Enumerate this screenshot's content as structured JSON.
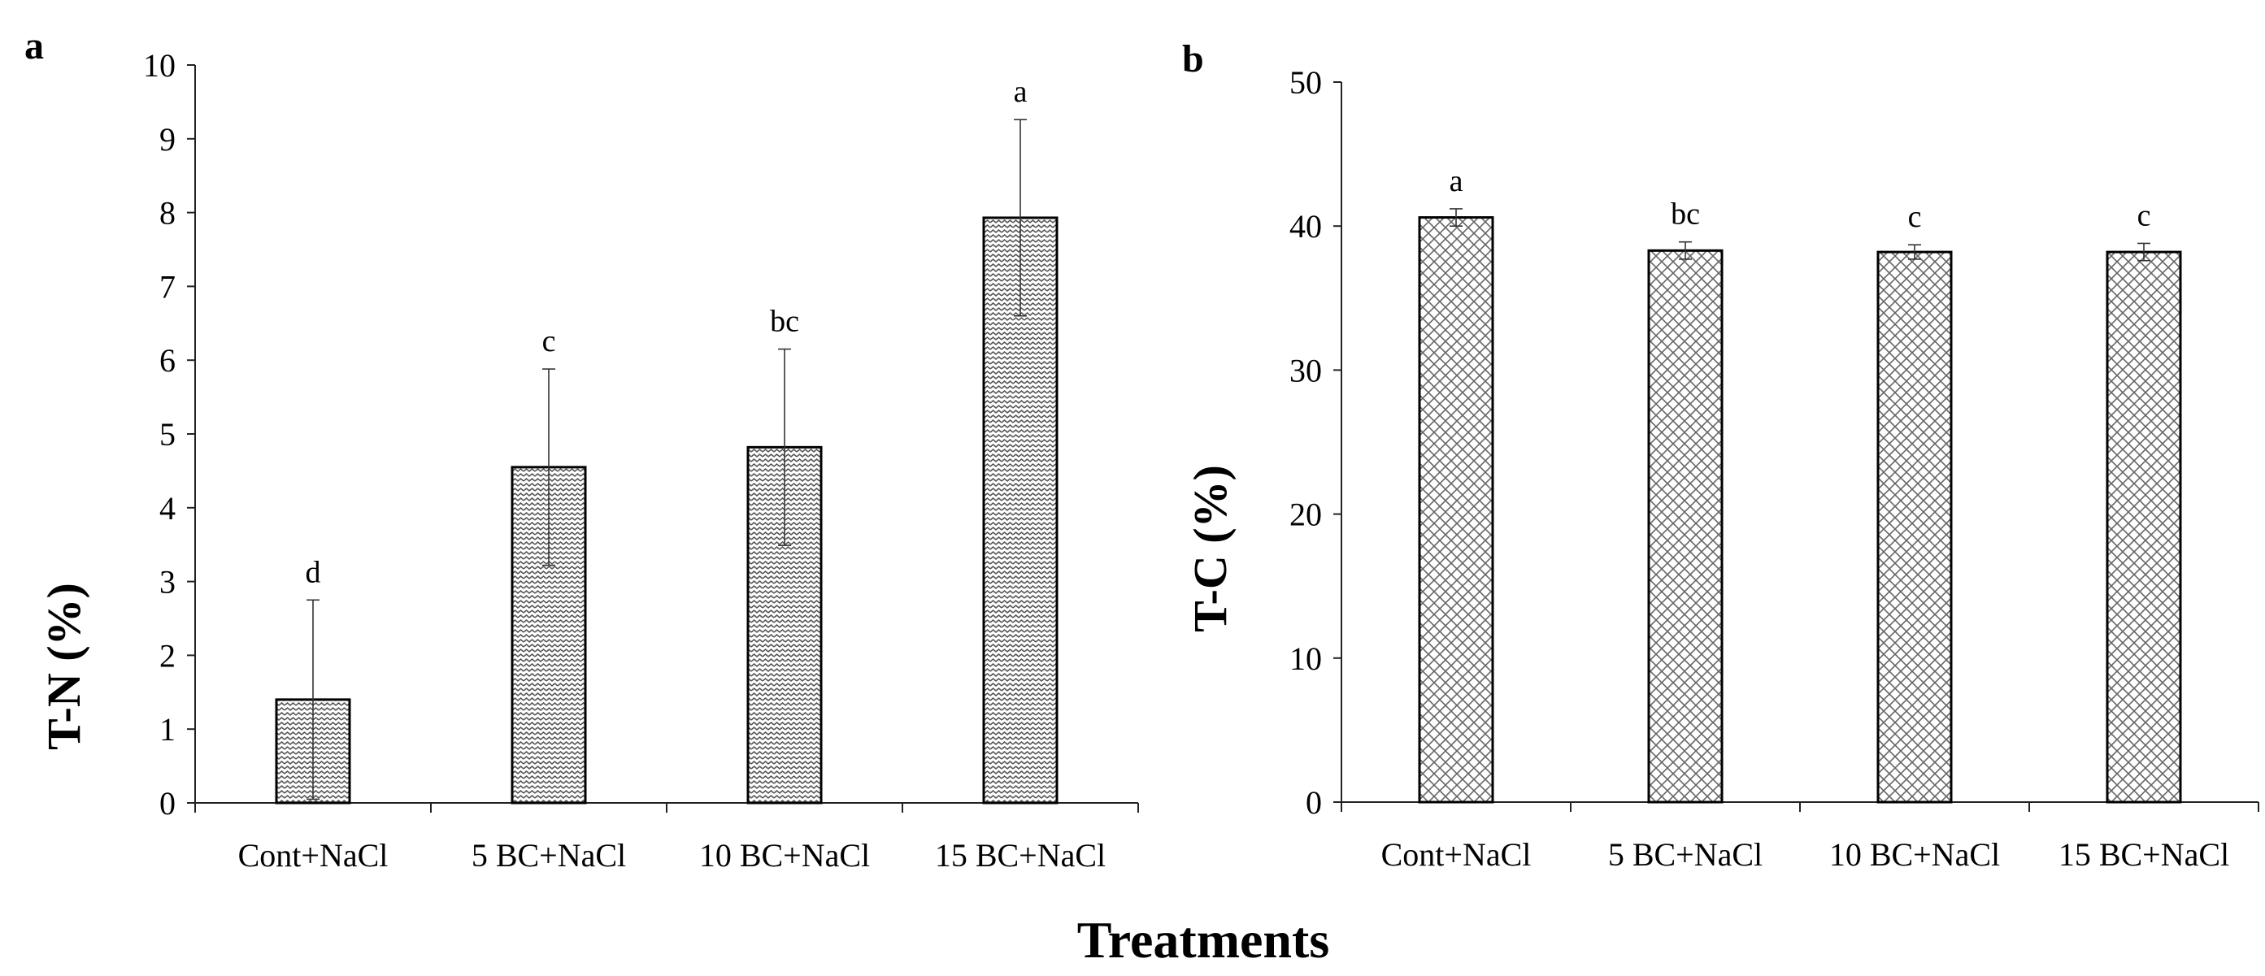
{
  "figure": {
    "shared_xlabel": "Treatments"
  },
  "chart_data": [
    {
      "panel": "a",
      "type": "bar",
      "ylabel": "T-N (%)",
      "xlabel": "Treatments",
      "categories": [
        "Cont+NaCl",
        "5 BC+NaCl",
        "10 BC+NaCl",
        "15 BC+NaCl"
      ],
      "values": [
        1.4,
        4.55,
        4.82,
        7.93
      ],
      "errors": [
        1.35,
        1.33,
        1.33,
        1.33
      ],
      "letters": [
        "d",
        "c",
        "bc",
        "a"
      ],
      "ylim": [
        0,
        10
      ],
      "yticks": [
        "0",
        "1",
        "2",
        "3",
        "4",
        "5",
        "6",
        "7",
        "8",
        "9",
        "10"
      ],
      "pattern": "zigzag",
      "grid": false,
      "legend": "none"
    },
    {
      "panel": "b",
      "type": "bar",
      "ylabel": "T-C (%)",
      "xlabel": "Treatments",
      "categories": [
        "Cont+NaCl",
        "5 BC+NaCl",
        "10 BC+NaCl",
        "15 BC+NaCl"
      ],
      "values": [
        40.6,
        38.3,
        38.2,
        38.2
      ],
      "errors": [
        0.6,
        0.6,
        0.5,
        0.6
      ],
      "letters": [
        "a",
        "bc",
        "c",
        "c"
      ],
      "ylim": [
        0,
        50
      ],
      "yticks": [
        "0",
        "10",
        "20",
        "30",
        "40",
        "50"
      ],
      "pattern": "crosshatch",
      "grid": false,
      "legend": "none"
    }
  ]
}
